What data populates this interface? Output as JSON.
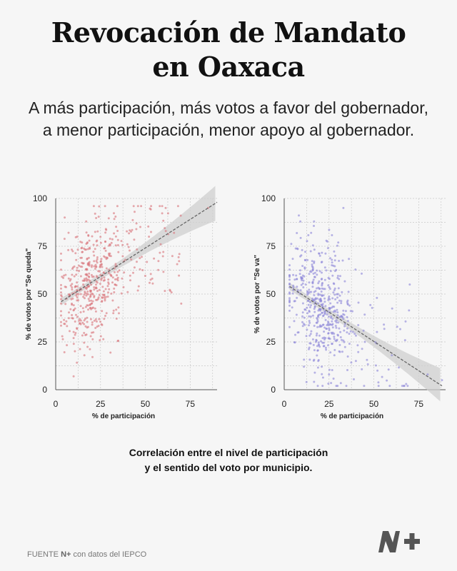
{
  "title": {
    "line1": "Revocación de Mandato",
    "line2": "en Oaxaca"
  },
  "subtitle": {
    "line1": "A más participación, más votos a favor del gobernador,",
    "line2": "a menor participación, menor apoyo al gobernador."
  },
  "caption": {
    "line1": "Correlación entre el nivel de participación",
    "line2": "y el sentido del voto por municipio."
  },
  "source": {
    "prefix": "FUENTE",
    "brand": "N+",
    "suffix": "con datos del IEPCO"
  },
  "logo": {
    "text": "N+"
  },
  "colors": {
    "left_points": "#d9737a",
    "right_points": "#8c86d9",
    "trend": "#666666",
    "band": "#cfcfcf",
    "grid": "#c9c9c9",
    "background": "#f6f6f6"
  },
  "chart_data": [
    {
      "type": "scatter",
      "title": "",
      "xlabel": "% de participación",
      "ylabel": "% de votos por \"Se queda\"",
      "xlim": [
        0,
        90
      ],
      "ylim": [
        0,
        100
      ],
      "xticks": [
        0,
        25,
        50,
        75
      ],
      "yticks": [
        0,
        25,
        50,
        75,
        100
      ],
      "grid": true,
      "trend": {
        "x": [
          3,
          90
        ],
        "y": [
          46,
          98
        ]
      },
      "points": {
        "count": 520,
        "x_range": [
          3,
          90
        ],
        "y_range": [
          5,
          96
        ],
        "concentration": "x mostly between 5 and 35"
      },
      "sample_points": [
        [
          5,
          90
        ],
        [
          7,
          73
        ],
        [
          8,
          57
        ],
        [
          9,
          39
        ],
        [
          10,
          27
        ],
        [
          10,
          7
        ],
        [
          12,
          80
        ],
        [
          13,
          62
        ],
        [
          14,
          50
        ],
        [
          15,
          35
        ],
        [
          16,
          18
        ],
        [
          17,
          88
        ],
        [
          18,
          66
        ],
        [
          19,
          57
        ],
        [
          20,
          45
        ],
        [
          21,
          30
        ],
        [
          22,
          92
        ],
        [
          23,
          78
        ],
        [
          25,
          60
        ],
        [
          26,
          48
        ],
        [
          27,
          37
        ],
        [
          28,
          84
        ],
        [
          30,
          70
        ],
        [
          33,
          55
        ],
        [
          35,
          43
        ],
        [
          40,
          76
        ],
        [
          44,
          93
        ],
        [
          47,
          63
        ],
        [
          52,
          80
        ],
        [
          60,
          72
        ],
        [
          66,
          82
        ],
        [
          70,
          45
        ],
        [
          85,
          95
        ]
      ]
    },
    {
      "type": "scatter",
      "title": "",
      "xlabel": "% de participación",
      "ylabel": "% de votos por \"Se va\"",
      "xlim": [
        0,
        90
      ],
      "ylim": [
        0,
        100
      ],
      "xticks": [
        0,
        25,
        50,
        75
      ],
      "yticks": [
        0,
        25,
        50,
        75,
        100
      ],
      "grid": true,
      "trend": {
        "x": [
          3,
          88
        ],
        "y": [
          54,
          2
        ]
      },
      "points": {
        "count": 520,
        "x_range": [
          3,
          88
        ],
        "y_range": [
          2,
          95
        ],
        "concentration": "x mostly between 5 and 35"
      },
      "sample_points": [
        [
          5,
          60
        ],
        [
          7,
          48
        ],
        [
          8,
          30
        ],
        [
          9,
          88
        ],
        [
          10,
          73
        ],
        [
          11,
          12
        ],
        [
          12,
          55
        ],
        [
          13,
          40
        ],
        [
          14,
          22
        ],
        [
          15,
          82
        ],
        [
          16,
          64
        ],
        [
          17,
          45
        ],
        [
          18,
          35
        ],
        [
          19,
          15
        ],
        [
          20,
          70
        ],
        [
          21,
          58
        ],
        [
          22,
          42
        ],
        [
          23,
          27
        ],
        [
          25,
          8
        ],
        [
          26,
          62
        ],
        [
          27,
          37
        ],
        [
          28,
          18
        ],
        [
          30,
          50
        ],
        [
          32,
          26
        ],
        [
          33,
          95
        ],
        [
          35,
          30
        ],
        [
          40,
          15
        ],
        [
          45,
          25
        ],
        [
          52,
          10
        ],
        [
          60,
          18
        ],
        [
          68,
          3
        ],
        [
          70,
          55
        ],
        [
          80,
          8
        ],
        [
          88,
          5
        ]
      ]
    }
  ]
}
